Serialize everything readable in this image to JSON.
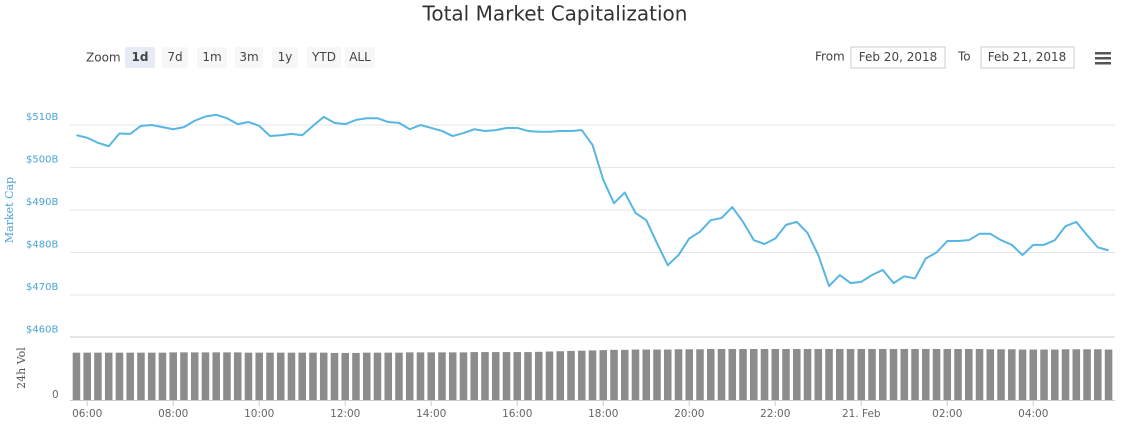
{
  "chart_data": {
    "type": "line",
    "title": "Total Market Capitalization",
    "controls": {
      "zoom_label": "Zoom",
      "buttons": [
        "1d",
        "7d",
        "1m",
        "3m",
        "1y",
        "YTD",
        "ALL"
      ],
      "selected": 0,
      "from_label": "From",
      "from_value": "Feb 20, 2018",
      "to_label": "To",
      "to_value": "Feb 21, 2018"
    },
    "x": [
      5.75,
      6,
      6.25,
      6.5,
      6.75,
      7,
      7.25,
      7.5,
      7.75,
      8,
      8.25,
      8.5,
      8.75,
      9,
      9.25,
      9.5,
      9.75,
      10,
      10.25,
      10.5,
      10.75,
      11,
      11.25,
      11.5,
      11.75,
      12,
      12.25,
      12.5,
      12.75,
      13,
      13.25,
      13.5,
      13.75,
      14,
      14.25,
      14.5,
      14.75,
      15,
      15.25,
      15.5,
      15.75,
      16,
      16.25,
      16.5,
      16.75,
      17,
      17.25,
      17.5,
      17.75,
      18,
      18.25,
      18.5,
      18.75,
      19,
      19.25,
      19.5,
      19.75,
      20,
      20.25,
      20.5,
      20.75,
      21,
      21.25,
      21.5,
      21.75,
      22,
      22.25,
      22.5,
      22.75,
      23,
      23.25,
      23.5,
      23.75,
      24,
      24.25,
      24.5,
      24.75,
      25,
      25.25,
      25.5,
      25.75,
      26,
      26.25,
      26.5,
      26.75,
      27,
      27.25,
      27.5,
      27.75,
      28,
      28.25,
      28.5,
      28.75,
      29,
      29.25,
      29.5,
      29.75
    ],
    "series": [
      {
        "name": "Market Cap",
        "color": "#58b6e3",
        "values": [
          507.6,
          507,
          505.8,
          505,
          508,
          507.9,
          509.8,
          510,
          509.5,
          509,
          509.5,
          511,
          512,
          512.4,
          511.6,
          510.2,
          510.7,
          509.8,
          507.4,
          507.6,
          507.9,
          507.6,
          509.8,
          511.9,
          510.5,
          510.2,
          511.2,
          511.6,
          511.6,
          510.7,
          510.5,
          509,
          510,
          509.3,
          508.6,
          507.4,
          508.1,
          509,
          508.6,
          508.8,
          509.3,
          509.3,
          508.6,
          508.4,
          508.4,
          508.6,
          508.6,
          508.8,
          505.3,
          497.1,
          491.6,
          494.1,
          489.3,
          487.6,
          482.2,
          477,
          479.4,
          483.3,
          484.9,
          487.6,
          488.1,
          490.7,
          487.2,
          482.9,
          482,
          483.3,
          486.5,
          487.2,
          484.6,
          479.4,
          472.1,
          474.7,
          472.8,
          473.1,
          474.7,
          475.9,
          472.8,
          474.4,
          473.9,
          478.6,
          480,
          482.7,
          482.7,
          482.9,
          484.4,
          484.4,
          482.9,
          481.8,
          479.4,
          481.8,
          481.8,
          482.9,
          486.2,
          487.2,
          484.1,
          481.2,
          480.5
        ]
      },
      {
        "name": "24h Vol",
        "type": "bar",
        "axis": "y2",
        "color": "#8c8c8c",
        "values": [
          16.8,
          16.8,
          16.8,
          16.8,
          16.8,
          16.8,
          16.8,
          16.8,
          16.8,
          16.9,
          16.9,
          16.9,
          16.9,
          16.9,
          16.9,
          16.9,
          16.8,
          16.8,
          16.8,
          16.8,
          16.8,
          16.8,
          16.8,
          16.8,
          16.7,
          16.7,
          16.7,
          16.8,
          16.8,
          16.8,
          16.8,
          16.9,
          16.9,
          16.9,
          16.9,
          16.9,
          16.9,
          17,
          17,
          17,
          17,
          17,
          17,
          17.1,
          17.2,
          17.3,
          17.4,
          17.5,
          17.6,
          17.7,
          17.8,
          17.8,
          17.9,
          17.9,
          17.9,
          17.9,
          18,
          18,
          18,
          18.1,
          18.1,
          18.1,
          18.1,
          18.1,
          18.1,
          18.1,
          18.1,
          18.1,
          18.1,
          18.1,
          18.1,
          18.1,
          18.1,
          18.1,
          18.1,
          18.1,
          18.1,
          18.1,
          18.1,
          18.1,
          18.1,
          18.1,
          18.1,
          18.1,
          18.1,
          18,
          18,
          18,
          17.9,
          17.9,
          17.9,
          17.9,
          18,
          18,
          18,
          18,
          17.9
        ]
      }
    ],
    "xlim": [
      5.6,
      29.9
    ],
    "xticks": [
      {
        "value": 6,
        "label": "06:00"
      },
      {
        "value": 8,
        "label": "08:00"
      },
      {
        "value": 10,
        "label": "10:00"
      },
      {
        "value": 12,
        "label": "12:00"
      },
      {
        "value": 14,
        "label": "14:00"
      },
      {
        "value": 16,
        "label": "16:00"
      },
      {
        "value": 18,
        "label": "18:00"
      },
      {
        "value": 20,
        "label": "20:00"
      },
      {
        "value": 22,
        "label": "22:00"
      },
      {
        "value": 24,
        "label": "21. Feb"
      },
      {
        "value": 26,
        "label": "02:00"
      },
      {
        "value": 28,
        "label": "04:00"
      }
    ],
    "ylim": [
      460,
      513.5
    ],
    "yticks": [
      {
        "value": 460,
        "label": "$460B"
      },
      {
        "value": 470,
        "label": "$470B"
      },
      {
        "value": 480,
        "label": "$480B"
      },
      {
        "value": 490,
        "label": "$490B"
      },
      {
        "value": 500,
        "label": "$500B"
      },
      {
        "value": 510,
        "label": "$510B"
      }
    ],
    "y2lim": [
      0,
      22
    ],
    "y2ticks": [
      0
    ],
    "grid": true
  }
}
